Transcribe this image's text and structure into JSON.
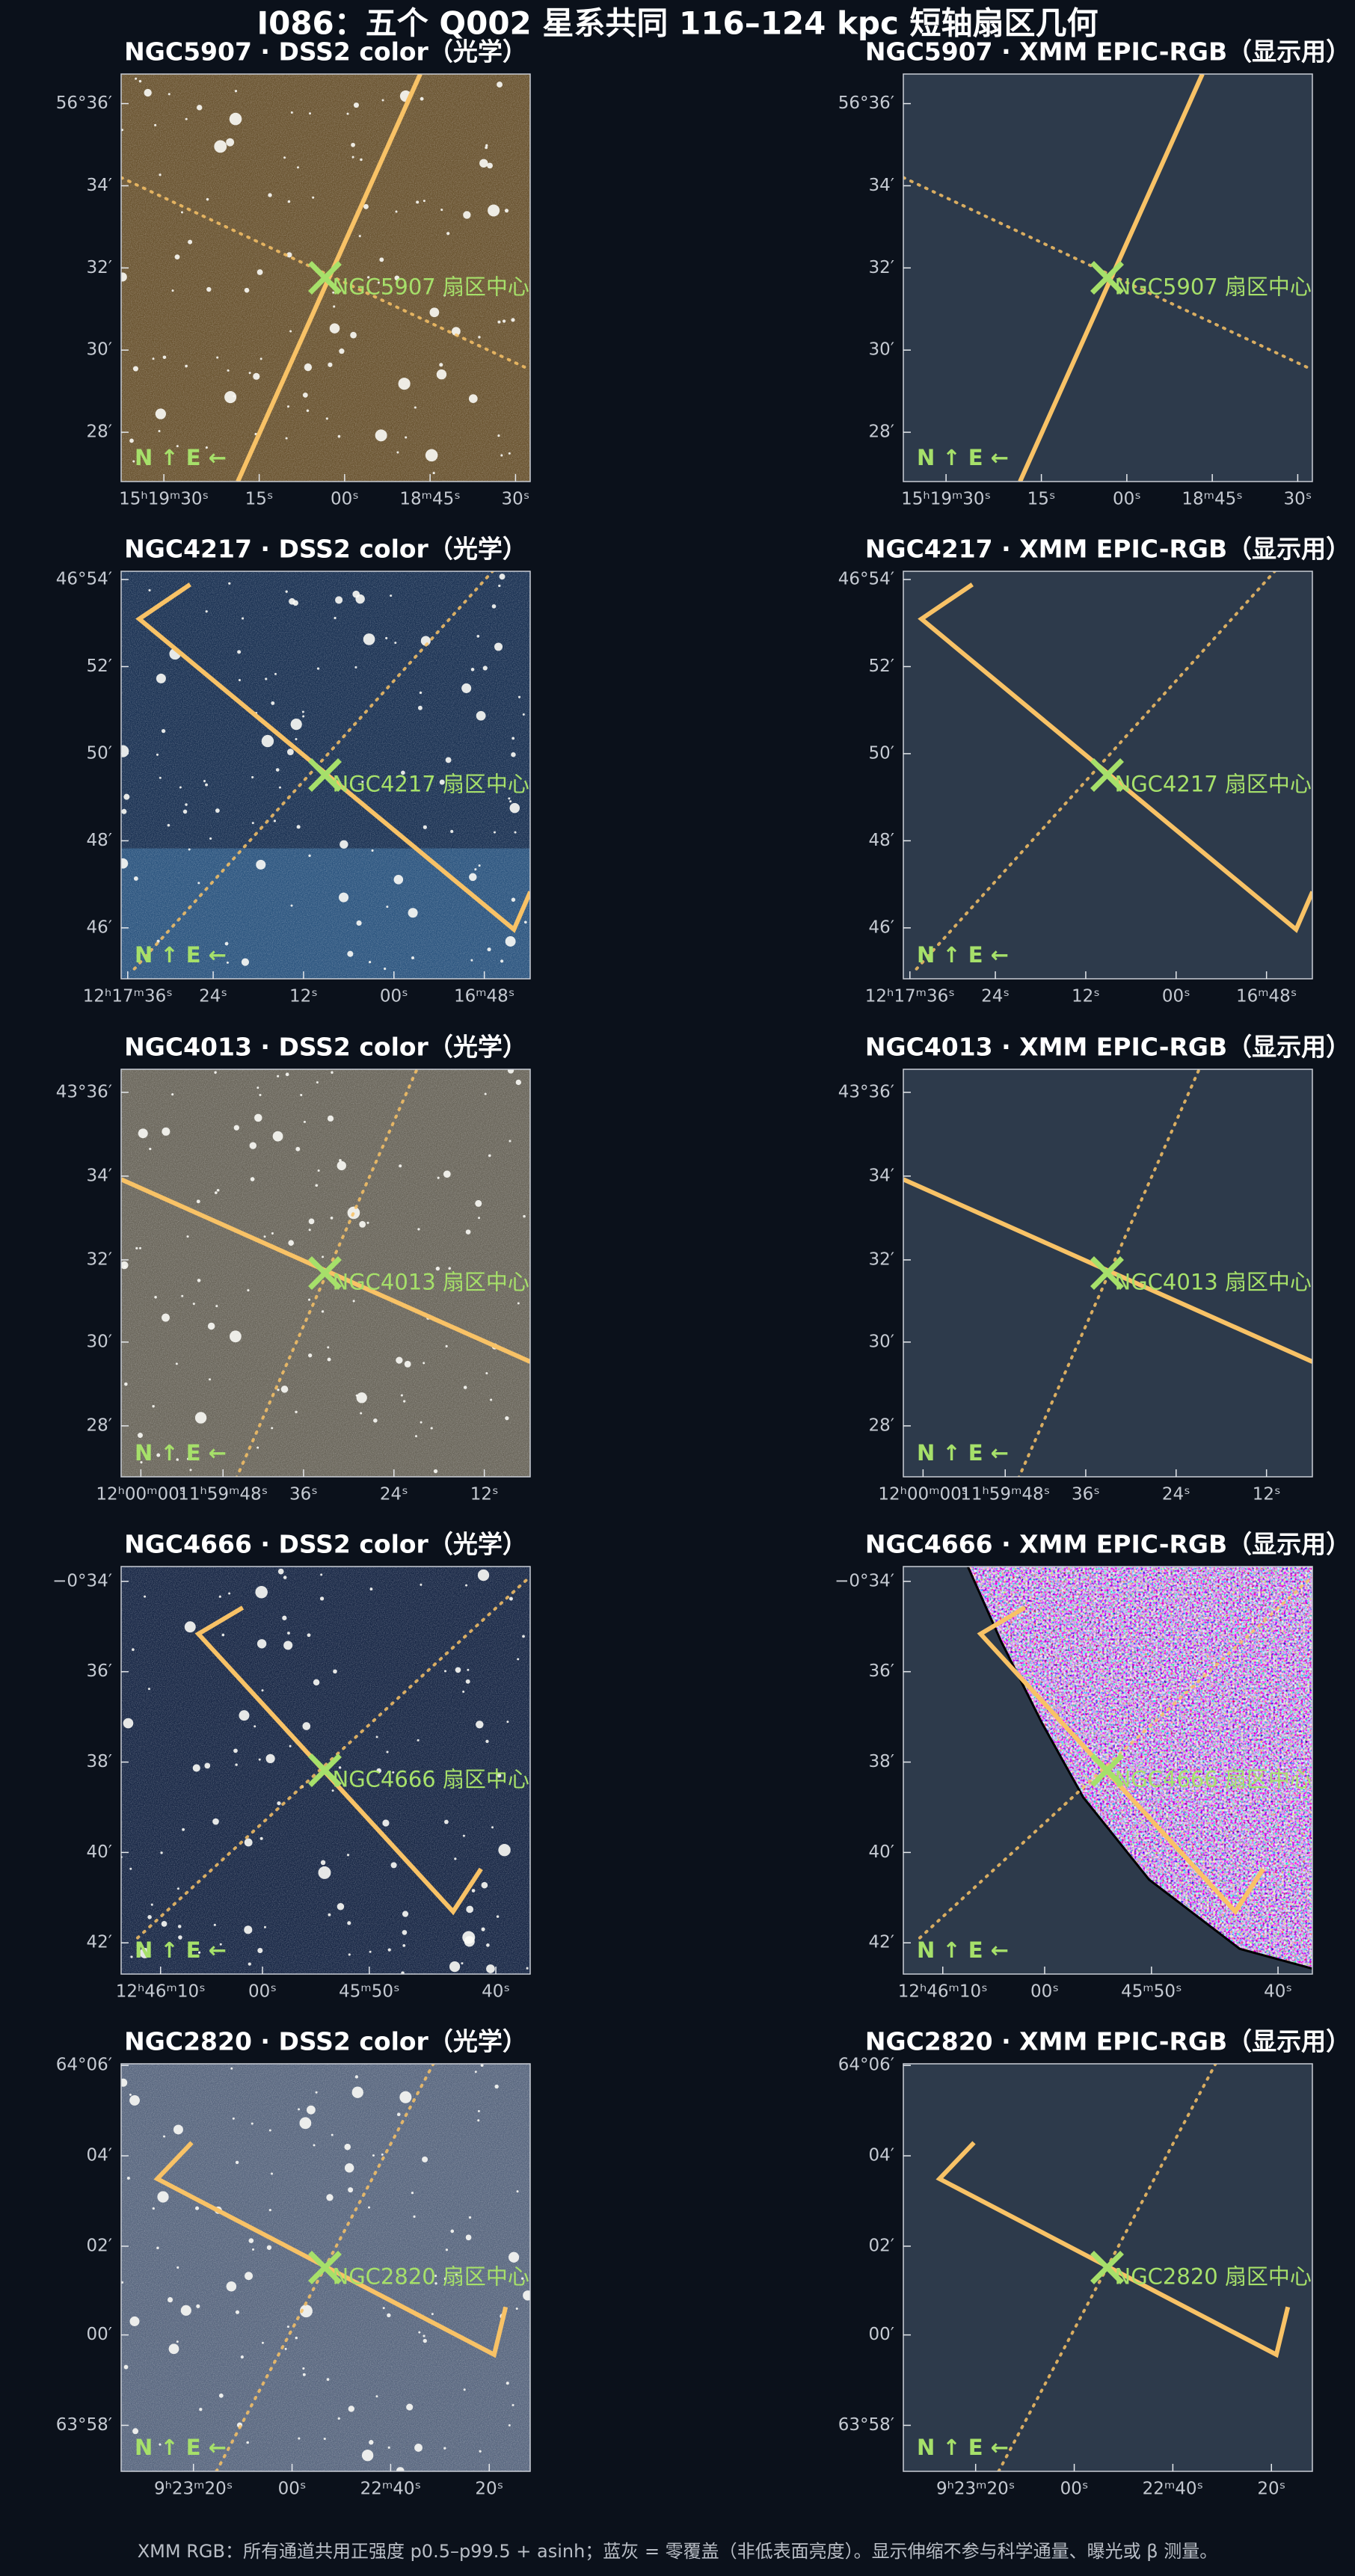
{
  "title": "I086：五个 Q002 星系共同 116–124 kpc 短轴扇区几何",
  "footer": "XMM RGB：所有通道共用正强度 p0.5–p99.5 + asinh；蓝灰 = 零覆盖（非低表面亮度）。显示伸缩不参与科学通量、曝光或 β 测量。",
  "compass": "N ↑  E ←",
  "rows": [
    {
      "left_title": "NGC5907 · DSS2 color（光学）",
      "right_title": "NGC5907 · XMM EPIC-RGB（显示用）",
      "center_label": "NGC5907 扇区中心",
      "yticks": [
        "56°36′",
        "34′",
        "32′",
        "30′",
        "28′"
      ],
      "xticks": [
        "15ʰ19ᵐ30ˢ",
        "15ˢ",
        "00ˢ",
        "18ᵐ45ˢ",
        "30ˢ"
      ]
    },
    {
      "left_title": "NGC4217 · DSS2 color（光学）",
      "right_title": "NGC4217 · XMM EPIC-RGB（显示用）",
      "center_label": "NGC4217 扇区中心",
      "yticks": [
        "46°54′",
        "52′",
        "50′",
        "48′",
        "46′"
      ],
      "xticks": [
        "12ʰ17ᵐ36ˢ",
        "24ˢ",
        "12ˢ",
        "00ˢ",
        "16ᵐ48ˢ"
      ]
    },
    {
      "left_title": "NGC4013 · DSS2 color（光学）",
      "right_title": "NGC4013 · XMM EPIC-RGB（显示用）",
      "center_label": "NGC4013 扇区中心",
      "yticks": [
        "43°36′",
        "34′",
        "32′",
        "30′",
        "28′"
      ],
      "xticks": [
        "12ʰ00ᵐ00ˢ",
        "11ʰ59ᵐ48ˢ",
        "36ˢ",
        "24ˢ",
        "12ˢ"
      ]
    },
    {
      "left_title": "NGC4666 · DSS2 color（光学）",
      "right_title": "NGC4666 · XMM EPIC-RGB（显示用）",
      "center_label": "NGC4666 扇区中心",
      "yticks": [
        "−0°34′",
        "36′",
        "38′",
        "40′",
        "42′"
      ],
      "xticks": [
        "12ʰ46ᵐ10ˢ",
        "00ˢ",
        "45ᵐ50ˢ",
        "40ˢ"
      ]
    },
    {
      "left_title": "NGC2820 · DSS2 color（光学）",
      "right_title": "NGC2820 · XMM EPIC-RGB（显示用）",
      "center_label": "NGC2820 扇区中心",
      "yticks": [
        "64°06′",
        "04′",
        "02′",
        "00′",
        "63°58′"
      ],
      "xticks": [
        "9ʰ23ᵐ20ˢ",
        "00ˢ",
        "22ᵐ40ˢ",
        "20ˢ"
      ]
    }
  ]
}
